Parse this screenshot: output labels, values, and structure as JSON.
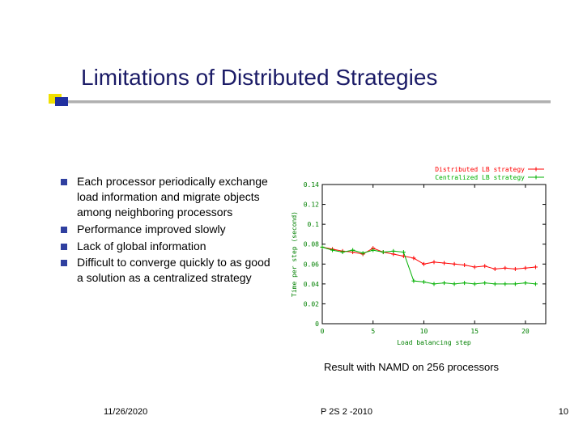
{
  "title": "Limitations of Distributed Strategies",
  "bullets": [
    "Each processor periodically exchange load information and migrate objects among neighboring processors",
    "Performance improved slowly",
    "Lack of global information",
    "Difficult to converge quickly to as good a solution as a centralized strategy"
  ],
  "caption": "Result with NAMD on 256 processors",
  "footer": {
    "date": "11/26/2020",
    "center": "P 2S 2 -2010",
    "num": "10"
  },
  "chart": {
    "type": "line",
    "legend": [
      {
        "label": "Distributed LB strategy",
        "color": "#ff0000"
      },
      {
        "label": "Centralized LB strategy",
        "color": "#00b000"
      }
    ],
    "xlabel": "Load balancing step",
    "ylabel": "Time per step (second)",
    "xlim": [
      0,
      22
    ],
    "ylim": [
      0,
      0.14
    ],
    "xticks": [
      0,
      5,
      10,
      15,
      20
    ],
    "yticks": [
      0,
      0.02,
      0.04,
      0.06,
      0.08,
      0.1,
      0.12,
      0.14
    ],
    "background_color": "#ffffff",
    "axis_color": "#000000",
    "tick_font_color": "#008000",
    "tick_font_size": 8,
    "label_font_size": 8,
    "legend_font_size": 8,
    "line_width": 1,
    "marker": "+",
    "marker_size": 5,
    "series": {
      "distributed": {
        "color": "#ff0000",
        "x": [
          0,
          1,
          2,
          3,
          4,
          5,
          6,
          7,
          8,
          9,
          10,
          11,
          12,
          13,
          14,
          15,
          16,
          17,
          18,
          19,
          20,
          21
        ],
        "y": [
          0.077,
          0.075,
          0.073,
          0.072,
          0.07,
          0.076,
          0.072,
          0.07,
          0.068,
          0.066,
          0.06,
          0.062,
          0.061,
          0.06,
          0.059,
          0.057,
          0.058,
          0.055,
          0.056,
          0.055,
          0.056,
          0.057
        ]
      },
      "centralized": {
        "color": "#00b000",
        "x": [
          0,
          1,
          2,
          3,
          4,
          5,
          6,
          7,
          8,
          9,
          10,
          11,
          12,
          13,
          14,
          15,
          16,
          17,
          18,
          19,
          20,
          21
        ],
        "y": [
          0.077,
          0.074,
          0.072,
          0.074,
          0.071,
          0.074,
          0.072,
          0.073,
          0.072,
          0.043,
          0.042,
          0.04,
          0.041,
          0.04,
          0.041,
          0.04,
          0.041,
          0.04,
          0.04,
          0.04,
          0.041,
          0.04
        ]
      }
    }
  }
}
